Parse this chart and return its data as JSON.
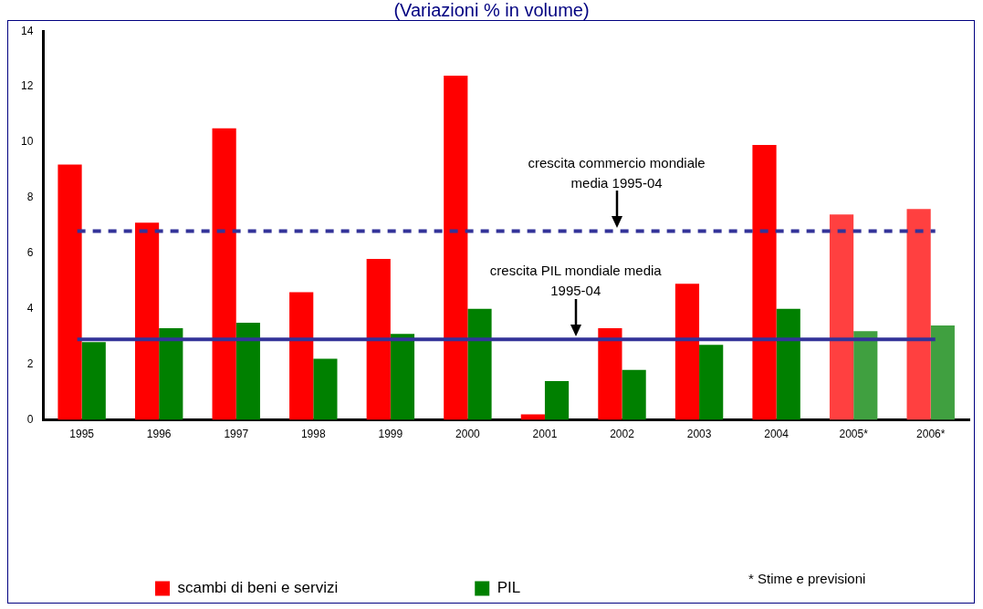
{
  "chart_data": {
    "type": "bar",
    "title": "(Variazioni % in volume)",
    "categories": [
      "1995",
      "1996",
      "1997",
      "1998",
      "1999",
      "2000",
      "2001",
      "2002",
      "2003",
      "2004",
      "2005*",
      "2006*"
    ],
    "series": [
      {
        "name": "scambi di beni e servizi",
        "color": "#ff0000",
        "colors": [
          "#ff0000",
          "#ff0000",
          "#ff0000",
          "#ff0000",
          "#ff0000",
          "#ff0000",
          "#ff0000",
          "#ff0000",
          "#ff0000",
          "#ff0000",
          "#ff4040",
          "#ff4040"
        ],
        "values": [
          9.2,
          7.1,
          10.5,
          4.6,
          5.8,
          12.4,
          0.2,
          3.3,
          4.9,
          9.9,
          7.4,
          7.6
        ]
      },
      {
        "name": "PIL",
        "color": "#008000",
        "colors": [
          "#008000",
          "#008000",
          "#008000",
          "#008000",
          "#008000",
          "#008000",
          "#008000",
          "#008000",
          "#008000",
          "#008000",
          "#40a040",
          "#40a040"
        ],
        "values": [
          2.8,
          3.3,
          3.5,
          2.2,
          3.1,
          4.0,
          1.4,
          1.8,
          2.7,
          4.0,
          3.2,
          3.4
        ]
      }
    ],
    "ylim": [
      0,
      14
    ],
    "yticks": [
      0,
      2,
      4,
      6,
      8,
      10,
      12,
      14
    ],
    "grid": false,
    "legend": "bottom",
    "ref_lines": [
      {
        "axis": "y",
        "value": 6.8,
        "label": "crescita commercio mondiale media 1995-04",
        "color": "#333399",
        "line_style": "dashed"
      },
      {
        "axis": "y",
        "value": 2.9,
        "label": "crescita PIL mondiale media 1995-04",
        "color": "#333399",
        "line_style": "solid"
      }
    ],
    "annotations": [
      "* Stime e previsioni"
    ]
  }
}
